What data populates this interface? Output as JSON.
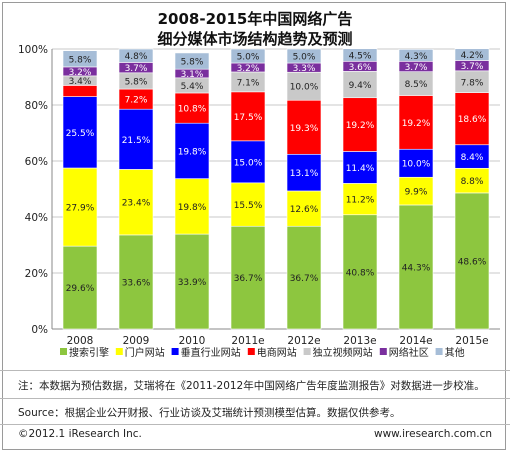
{
  "title_line1": "2008-2015年中国网络广告",
  "title_line2": "细分媒体市场结构趋势及预测",
  "chart_data": {
    "type": "stacked-bar-100",
    "categories": [
      "2008",
      "2009",
      "2010",
      "2011e",
      "2012e",
      "2013e",
      "2014e",
      "2015e"
    ],
    "ylim": [
      0,
      100
    ],
    "yticks": [
      "0%",
      "20%",
      "40%",
      "60%",
      "80%",
      "100%"
    ],
    "grid": true,
    "legend_position": "bottom",
    "series": [
      {
        "name": "搜索引擎",
        "color": "#8DC63F",
        "labels": [
          "29.6%",
          "33.6%",
          "33.9%",
          "36.7%",
          "36.7%",
          "40.8%",
          "44.3%",
          "48.6%"
        ],
        "values": [
          29.6,
          33.6,
          33.9,
          36.7,
          36.7,
          40.8,
          44.3,
          48.6
        ]
      },
      {
        "name": "门户网站",
        "color": "#FFFF00",
        "labels": [
          "27.9%",
          "23.4%",
          "19.8%",
          "15.5%",
          "12.6%",
          "11.2%",
          "9.9%",
          "8.8%"
        ],
        "values": [
          27.9,
          23.4,
          19.8,
          15.5,
          12.6,
          11.2,
          9.9,
          8.8
        ]
      },
      {
        "name": "垂直行业网站",
        "color": "#0000FF",
        "labels": [
          "25.5%",
          "21.5%",
          "19.8%",
          "15.0%",
          "13.1%",
          "11.4%",
          "10.0%",
          "8.4%"
        ],
        "values": [
          25.5,
          21.5,
          19.8,
          15.0,
          13.1,
          11.4,
          10.0,
          8.4
        ]
      },
      {
        "name": "电商网站",
        "color": "#FF0000",
        "labels": [
          "",
          "7.2%",
          "10.8%",
          "17.5%",
          "19.3%",
          "19.2%",
          "19.2%",
          "18.6%"
        ],
        "values": [
          4.0,
          7.2,
          10.8,
          17.5,
          19.3,
          19.2,
          19.2,
          18.6
        ]
      },
      {
        "name": "独立视频网站",
        "color": "#C9C9C9",
        "labels": [
          "3.4%",
          "5.8%",
          "5.4%",
          "7.1%",
          "10.0%",
          "9.4%",
          "8.5%",
          "7.8%"
        ],
        "values": [
          3.4,
          5.8,
          5.4,
          7.1,
          10.0,
          9.4,
          8.5,
          7.8
        ]
      },
      {
        "name": "网络社区",
        "color": "#7A2F9E",
        "labels": [
          "3.2%",
          "3.7%",
          "3.1%",
          "3.2%",
          "3.3%",
          "3.6%",
          "3.7%",
          "3.7%"
        ],
        "values": [
          3.2,
          3.7,
          3.1,
          3.2,
          3.3,
          3.6,
          3.7,
          3.7
        ]
      },
      {
        "name": "其他",
        "color": "#A6BDD7",
        "labels": [
          "5.8%",
          "4.8%",
          "5.8%",
          "5.0%",
          "5.0%",
          "4.5%",
          "4.3%",
          "4.2%"
        ],
        "values": [
          5.8,
          4.8,
          5.8,
          5.0,
          5.0,
          4.5,
          4.3,
          4.2
        ]
      }
    ]
  },
  "note": "注：本数据为预估数据，艾瑞将在《2011-2012年中国网络广告年度监测报告》对数据进一步校准。",
  "source": "Source：根据企业公开财报、行业访谈及艾瑞统计预测模型估算。数据仅供参考。",
  "copyright": "©2012.1 iResearch Inc.",
  "website": "www.iresearch.com.cn"
}
